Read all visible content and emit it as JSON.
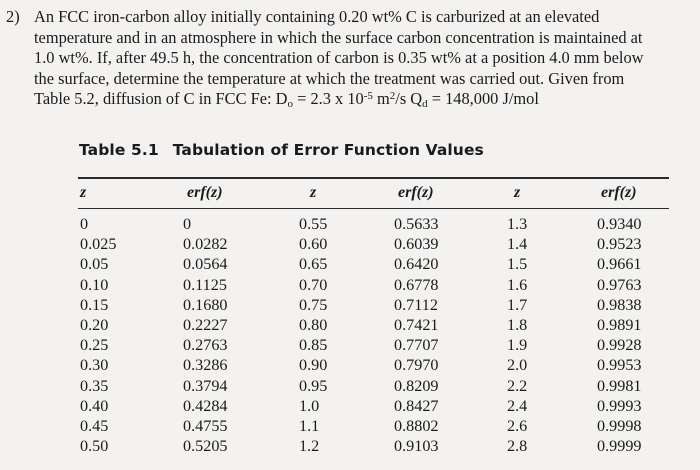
{
  "problem": {
    "number": "2)",
    "lines": [
      "An FCC iron-carbon alloy initially containing 0.20 wt% C is carburized at an elevated",
      "temperature and in an atmosphere in which the surface carbon concentration is maintained at",
      "1.0 wt%. If, after 49.5 h, the concentration of carbon is 0.35 wt% at a position 4.0 mm below",
      "the surface, determine the temperature at which the treatment was carried out. Given from"
    ],
    "last_line": {
      "prefix": "Table 5.2, diffusion of C in FCC Fe: D",
      "d_sub": "o",
      "eq": " = 2.3 x 10",
      "exp": "-5",
      "unit": " m",
      "unit_sup": "2",
      "unit_tail": "/s   Q",
      "q_sub": "d",
      "q_val": " = 148,000 J/mol"
    }
  },
  "table": {
    "label": "Table 5.1",
    "title": "Tabulation of Error Function Values",
    "headers": [
      "z",
      "erf(z)",
      "z",
      "erf(z)",
      "z",
      "erf(z)"
    ],
    "columns": [
      [
        "0",
        "0.025",
        "0.05",
        "0.10",
        "0.15",
        "0.20",
        "0.25",
        "0.30",
        "0.35",
        "0.40",
        "0.45",
        "0.50"
      ],
      [
        "0",
        "0.0282",
        "0.0564",
        "0.1125",
        "0.1680",
        "0.2227",
        "0.2763",
        "0.3286",
        "0.3794",
        "0.4284",
        "0.4755",
        "0.5205"
      ],
      [
        "0.55",
        "0.60",
        "0.65",
        "0.70",
        "0.75",
        "0.80",
        "0.85",
        "0.90",
        "0.95",
        "1.0",
        "1.1",
        "1.2"
      ],
      [
        "0.5633",
        "0.6039",
        "0.6420",
        "0.6778",
        "0.7112",
        "0.7421",
        "0.7707",
        "0.7970",
        "0.8209",
        "0.8427",
        "0.8802",
        "0.9103"
      ],
      [
        "1.3",
        "1.4",
        "1.5",
        "1.6",
        "1.7",
        "1.8",
        "1.9",
        "2.0",
        "2.2",
        "2.4",
        "2.6",
        "2.8"
      ],
      [
        "0.9340",
        "0.9523",
        "0.9661",
        "0.9763",
        "0.9838",
        "0.9891",
        "0.9928",
        "0.9953",
        "0.9981",
        "0.9993",
        "0.9998",
        "0.9999"
      ]
    ]
  }
}
